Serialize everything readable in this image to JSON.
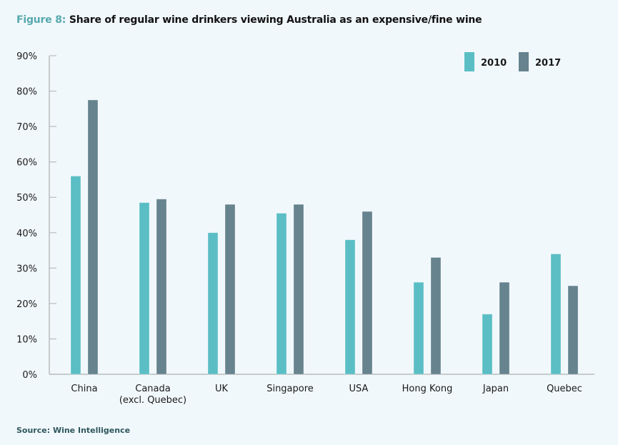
{
  "figure": {
    "label": "Figure 8:",
    "title": "Share of regular wine drinkers viewing Australia as an expensive/fine wine"
  },
  "source": "Source: Wine Intelligence",
  "colors": {
    "series_2010": "#5bbec5",
    "series_2017": "#66838e",
    "axis": "#b7bdbd",
    "figure_label": "#56a9ae"
  },
  "chart_data": {
    "type": "bar",
    "title": "Share of regular wine drinkers viewing Australia as an expensive/fine wine",
    "xlabel": "",
    "ylabel": "",
    "ylim": [
      0,
      90
    ],
    "yticks": [
      0,
      10,
      20,
      30,
      40,
      50,
      60,
      70,
      80,
      90
    ],
    "ytick_labels": [
      "0%",
      "10%",
      "20%",
      "30%",
      "40%",
      "50%",
      "60%",
      "70%",
      "80%",
      "90%"
    ],
    "grid": false,
    "legend_position": "top-right",
    "categories": [
      [
        "China"
      ],
      [
        "Canada",
        "(excl. Quebec)"
      ],
      [
        "UK"
      ],
      [
        "Singapore"
      ],
      [
        "USA"
      ],
      [
        "Hong Kong"
      ],
      [
        "Japan"
      ],
      [
        "Quebec"
      ]
    ],
    "series": [
      {
        "name": "2010",
        "values": [
          56,
          48.5,
          40,
          45.5,
          38,
          26,
          17,
          34
        ]
      },
      {
        "name": "2017",
        "values": [
          77.5,
          49.5,
          48,
          48,
          46,
          33,
          26,
          25
        ]
      }
    ]
  }
}
